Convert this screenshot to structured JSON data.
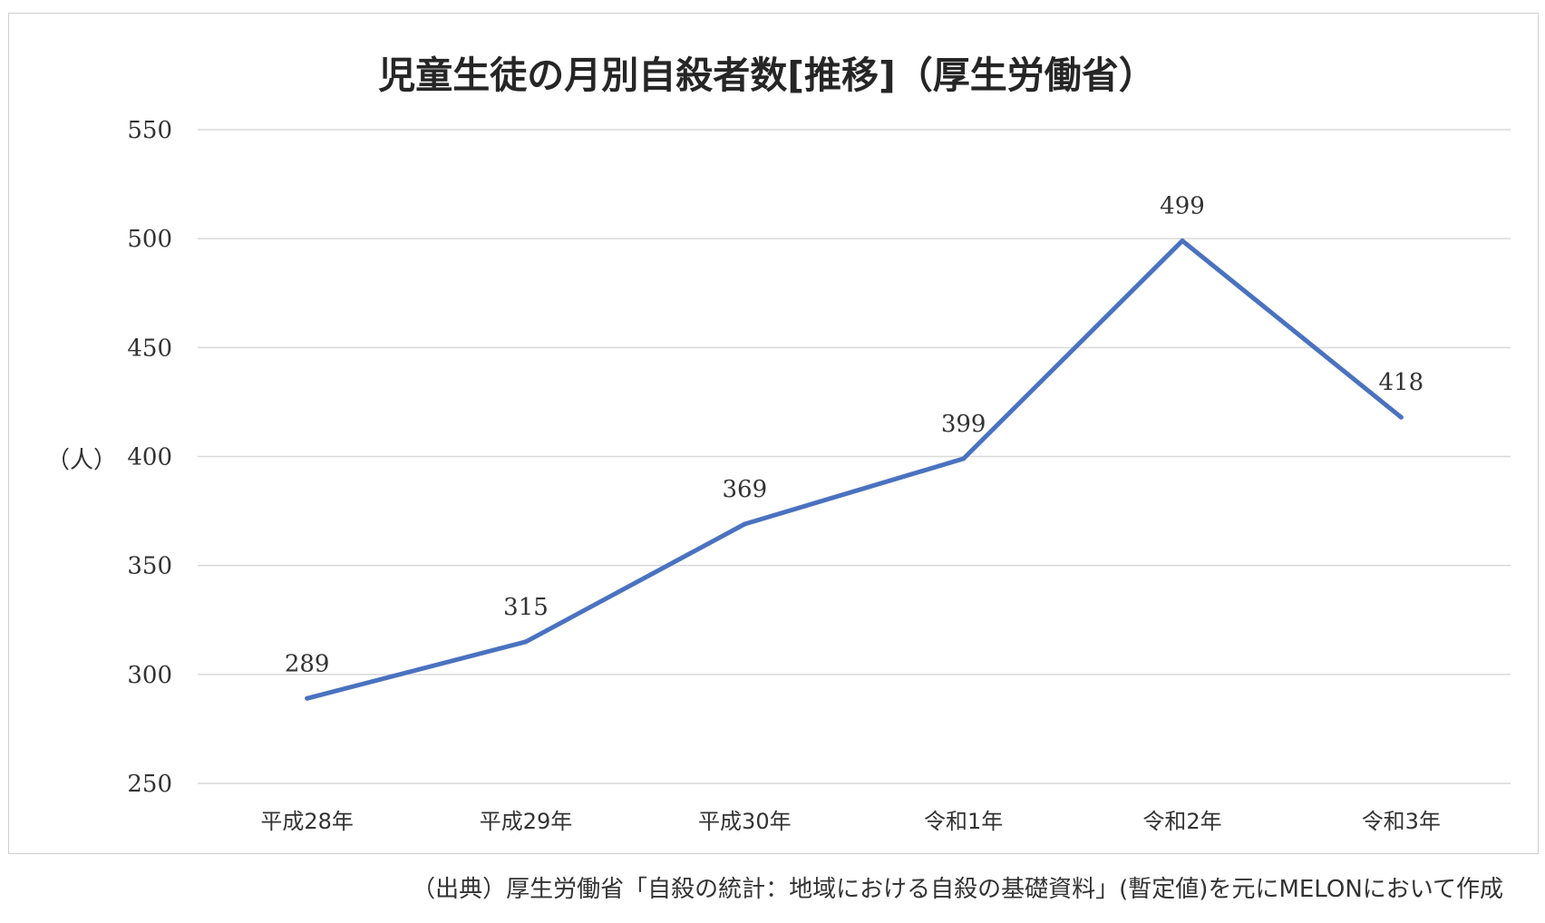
{
  "chart_data": {
    "type": "line",
    "title": "児童生徒の月別自殺者数[推移]（厚生労働省）",
    "ylabel": "（人）",
    "xlabel": "",
    "categories": [
      "平成28年",
      "平成29年",
      "平成30年",
      "令和1年",
      "令和2年",
      "令和3年"
    ],
    "series": [
      {
        "values": [
          289,
          315,
          369,
          399,
          499,
          418
        ],
        "color": "#4a72c0"
      }
    ],
    "ylim": [
      250,
      550
    ],
    "yticks": [
      250,
      300,
      350,
      400,
      450,
      500,
      550
    ],
    "grid": true,
    "data_labels": true
  },
  "source_note": "（出典）厚生労働省「自殺の統計：地域における自殺の基礎資料」(暫定値)を元にMELONにおいて作成"
}
